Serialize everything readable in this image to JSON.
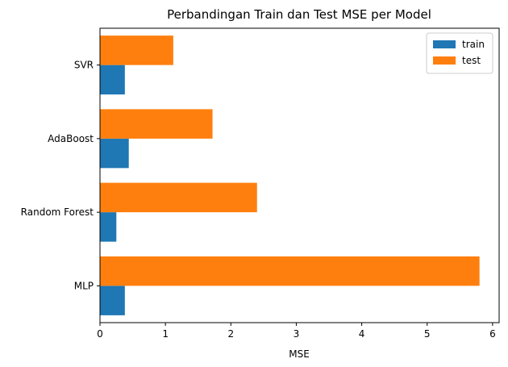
{
  "chart_data": {
    "type": "bar",
    "orientation": "horizontal",
    "title": "Perbandingan Train dan Test MSE per Model",
    "xlabel": "MSE",
    "ylabel": "",
    "categories": [
      "MLP",
      "Random Forest",
      "AdaBoost",
      "SVR"
    ],
    "series": [
      {
        "name": "train",
        "color": "#1f77b4",
        "values": [
          0.38,
          0.25,
          0.44,
          0.38
        ]
      },
      {
        "name": "test",
        "color": "#ff7f0e",
        "values": [
          5.8,
          2.4,
          1.72,
          1.12
        ]
      }
    ],
    "xlim": [
      0,
      6.1
    ],
    "xticks": [
      0,
      1,
      2,
      3,
      4,
      5,
      6
    ],
    "grid": false,
    "legend_position": "top-right"
  }
}
